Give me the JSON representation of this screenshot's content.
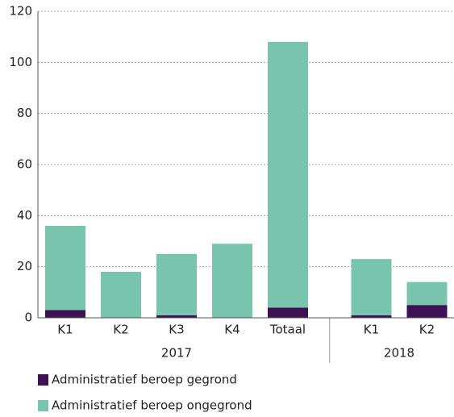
{
  "chart_data": {
    "type": "bar",
    "stacked": true,
    "groups": [
      "2017",
      "2018"
    ],
    "categories": [
      [
        "K1",
        "K2",
        "K3",
        "K4",
        "Totaal"
      ],
      [
        "K1",
        "K2"
      ]
    ],
    "series": [
      {
        "name": "Administratief beroep gegrond",
        "color": "#3d1152",
        "values": [
          [
            3,
            0,
            1,
            0,
            4
          ],
          [
            1,
            5
          ]
        ]
      },
      {
        "name": "Administratief beroep ongegrond",
        "color": "#78c4ad",
        "values": [
          [
            33,
            18,
            24,
            29,
            104
          ],
          [
            22,
            9
          ]
        ]
      }
    ],
    "ylim": [
      0,
      120
    ],
    "yticks": [
      0,
      20,
      40,
      60,
      80,
      100,
      120
    ],
    "grid": true,
    "legend": "bottom"
  }
}
